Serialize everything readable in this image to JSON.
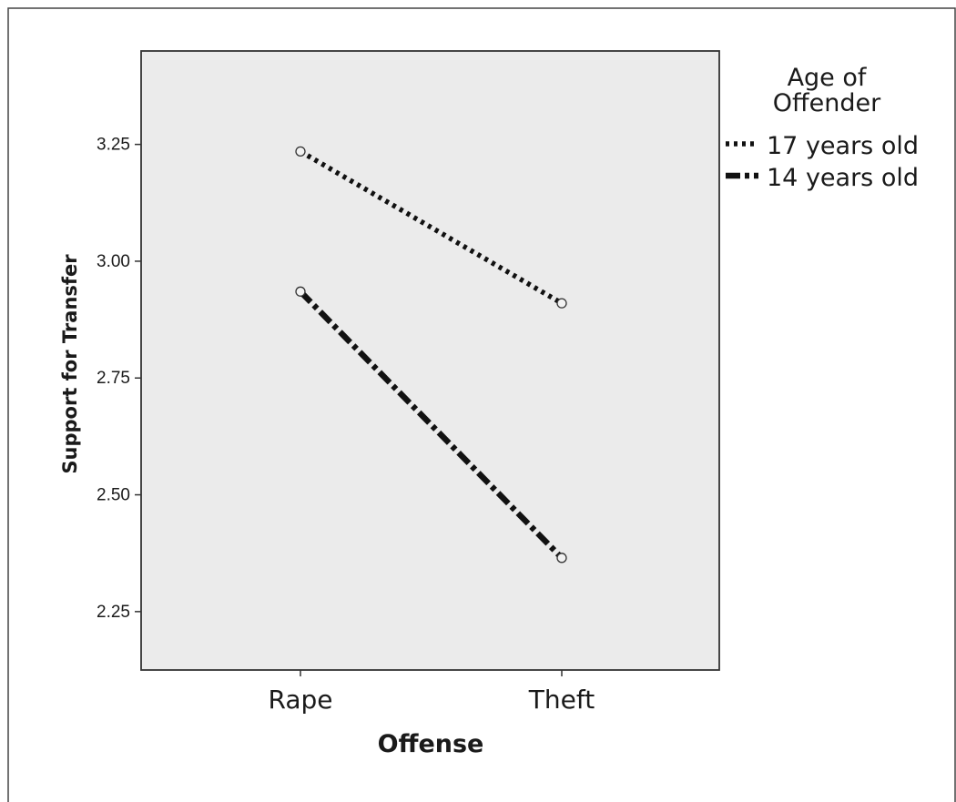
{
  "chart_data": {
    "type": "line",
    "title": "",
    "xlabel": "Offense",
    "ylabel": "Support for Transfer",
    "categories": [
      "Rape",
      "Theft"
    ],
    "ylim": [
      2.125,
      3.45
    ],
    "yticks": [
      2.25,
      2.5,
      2.75,
      3.0,
      3.25
    ],
    "ytick_labels": [
      "2.25",
      "2.50",
      "2.75",
      "3.00",
      "3.25"
    ],
    "grid": false,
    "legend": {
      "title_lines": [
        "Age of",
        "Offender"
      ],
      "placement": "right"
    },
    "series": [
      {
        "name": "17 years old",
        "values": [
          3.235,
          2.91
        ],
        "style": "dotted",
        "color": "#111111"
      },
      {
        "name": "14 years old",
        "values": [
          2.935,
          2.365
        ],
        "style": "dash-dot",
        "color": "#111111"
      }
    ]
  },
  "colors": {
    "plot_background": "#ebebeb",
    "frame": "#333333",
    "line": "#111111",
    "marker_fill": "#f2f2f2"
  }
}
